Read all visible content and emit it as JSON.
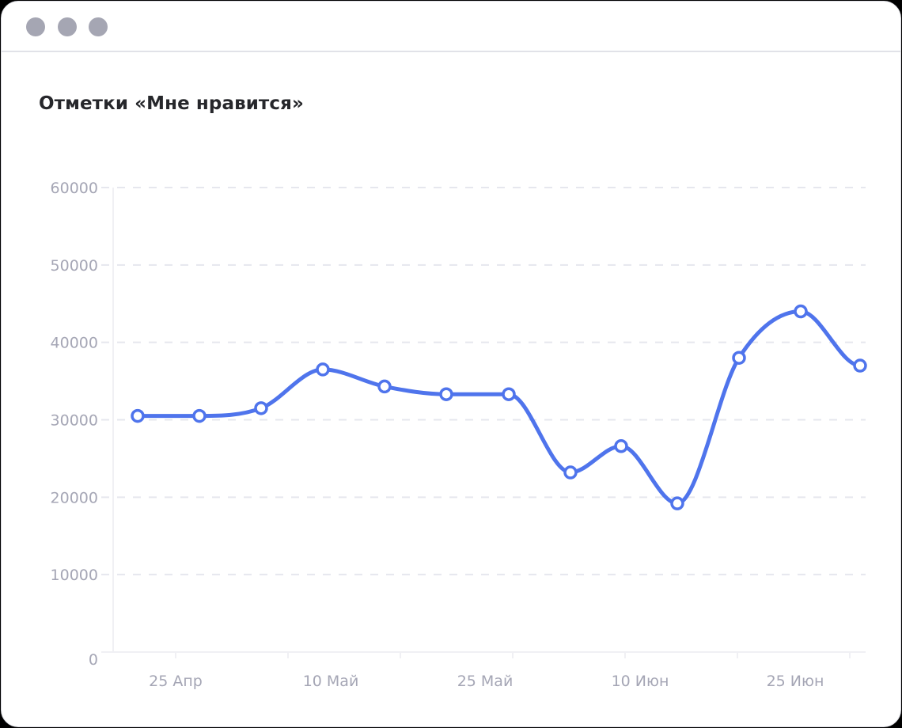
{
  "window": {
    "controls": [
      "window-dot",
      "window-dot",
      "window-dot"
    ],
    "control_color": "#a5a6b3"
  },
  "card": {
    "title": "Отметки «Мне нравится»"
  },
  "colors": {
    "line": "#4f74ec",
    "marker_fill": "#ffffff",
    "grid": "#e6e7ee",
    "axis_text": "#a5a6b5",
    "title": "#26272b"
  },
  "chart_data": {
    "type": "line",
    "title": "Отметки «Мне нравится»",
    "xlabel": "",
    "ylabel": "",
    "ylim": [
      0,
      60000
    ],
    "yticks": [
      "0",
      "10000",
      "20000",
      "30000",
      "40000",
      "50000",
      "60000"
    ],
    "xtick_labels": [
      "25 Апр",
      "10 Май",
      "25 Май",
      "10 Июн",
      "25 Июн"
    ],
    "grid": "horizontal dashed",
    "legend": "none",
    "curve": "smooth",
    "series": [
      {
        "name": "Отметки «Мне нравится»",
        "values": [
          30500,
          30500,
          31500,
          36500,
          34300,
          33300,
          33300,
          23200,
          26600,
          19200,
          38000,
          44000,
          37000
        ]
      }
    ]
  }
}
